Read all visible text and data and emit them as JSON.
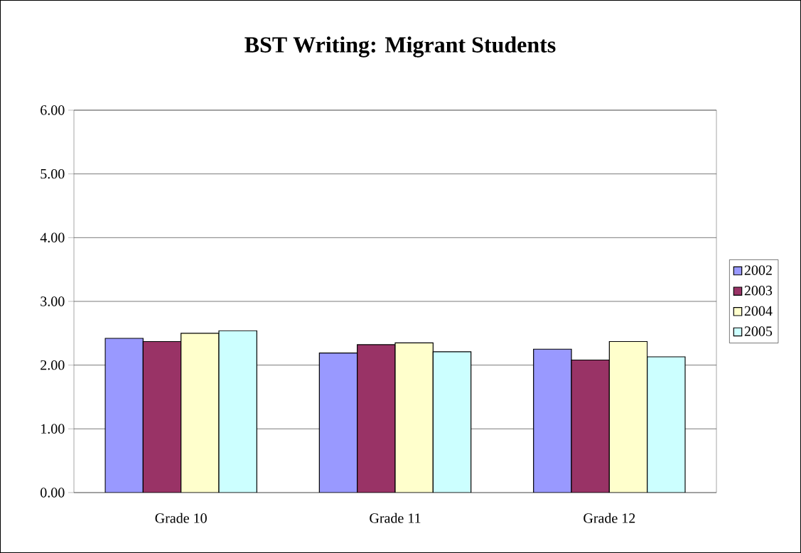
{
  "chart_data": {
    "type": "bar",
    "title": "BST Writing: Migrant Students",
    "categories": [
      "Grade 10",
      "Grade 11",
      "Grade 12"
    ],
    "series": [
      {
        "name": "2002",
        "color": "#9999ff",
        "values": [
          2.42,
          2.19,
          2.25
        ]
      },
      {
        "name": "2003",
        "color": "#993366",
        "values": [
          2.37,
          2.32,
          2.08
        ]
      },
      {
        "name": "2004",
        "color": "#ffffcc",
        "values": [
          2.5,
          2.35,
          2.37
        ]
      },
      {
        "name": "2005",
        "color": "#ccffff",
        "values": [
          2.54,
          2.21,
          2.13
        ]
      }
    ],
    "ylim": [
      0,
      6
    ],
    "yticks": [
      {
        "value": 0,
        "label": "0.00"
      },
      {
        "value": 1,
        "label": "1.00"
      },
      {
        "value": 2,
        "label": "2.00"
      },
      {
        "value": 3,
        "label": "3.00"
      },
      {
        "value": 4,
        "label": "4.00"
      },
      {
        "value": 5,
        "label": "5.00"
      },
      {
        "value": 6,
        "label": "6.00"
      }
    ],
    "grid": "y",
    "legend": "right"
  }
}
